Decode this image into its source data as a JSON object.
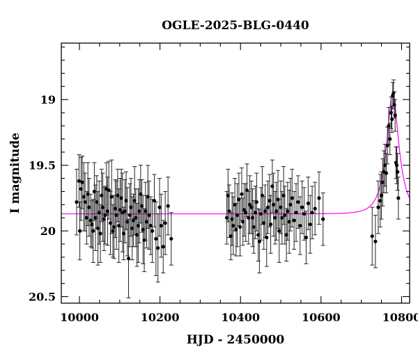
{
  "chart_data": {
    "type": "scatter",
    "title": "OGLE-2025-BLG-0440",
    "xlabel": "HJD - 2450000",
    "ylabel": "I magnitude",
    "xlim": [
      9955,
      10820
    ],
    "ylim": [
      20.55,
      18.57
    ],
    "y_inverted": true,
    "x_ticks": [
      10000,
      10200,
      10400,
      10600,
      10800
    ],
    "x_tick_labels": [
      "10000",
      "10200",
      "10400",
      "10600",
      "10800"
    ],
    "y_ticks": [
      19,
      19.5,
      20,
      20.5
    ],
    "y_tick_labels": [
      "19",
      "19.5",
      "20",
      "20.5"
    ],
    "grid": false,
    "legend": "none",
    "colors": {
      "points": "#000000",
      "model": "#ff00ff"
    },
    "model": {
      "name": "",
      "baseline_mag": 19.87,
      "peak_time": 10778,
      "peak_mag": 18.95,
      "timescale_days": 30,
      "u0": 0.4
    },
    "series": [
      {
        "name": "",
        "x": [
          9993,
          9999,
          10001,
          10004,
          10007,
          10011,
          10014,
          10018,
          10021,
          10024,
          10028,
          10031,
          10034,
          10037,
          10040,
          10043,
          10046,
          10049,
          10052,
          10055,
          10058,
          10061,
          10064,
          10067,
          10070,
          10073,
          10077,
          10080,
          10083,
          10086,
          10089,
          10092,
          10095,
          10098,
          10101,
          10104,
          10107,
          10110,
          10113,
          10116,
          10119,
          10122,
          10125,
          10128,
          10131,
          10134,
          10137,
          10140,
          10143,
          10146,
          10149,
          10152,
          10155,
          10158,
          10161,
          10164,
          10167,
          10170,
          10173,
          10177,
          10181,
          10186,
          10190,
          10195,
          10199,
          10203,
          10208,
          10213,
          10220,
          10228,
          10366,
          10369,
          10372,
          10376,
          10379,
          10382,
          10386,
          10389,
          10392,
          10396,
          10399,
          10403,
          10406,
          10409,
          10413,
          10416,
          10420,
          10423,
          10427,
          10430,
          10433,
          10437,
          10440,
          10444,
          10447,
          10451,
          10454,
          10458,
          10461,
          10465,
          10468,
          10472,
          10475,
          10479,
          10482,
          10486,
          10489,
          10493,
          10496,
          10500,
          10503,
          10507,
          10510,
          10514,
          10517,
          10521,
          10524,
          10528,
          10533,
          10538,
          10543,
          10548,
          10553,
          10558,
          10563,
          10568,
          10573,
          10578,
          10585,
          10595,
          10605,
          10727,
          10735,
          10742,
          10747,
          10750,
          10753,
          10756,
          10759,
          10762,
          10765,
          10768,
          10771,
          10774,
          10776,
          10778,
          10780,
          10782,
          10784,
          10786,
          10788,
          10790,
          10792
        ],
        "y": [
          19.78,
          19.62,
          20.0,
          19.68,
          19.63,
          19.74,
          19.78,
          19.9,
          19.72,
          19.82,
          19.92,
          19.95,
          20.0,
          19.7,
          19.9,
          19.78,
          19.98,
          19.86,
          20.02,
          19.73,
          19.82,
          19.91,
          19.88,
          19.68,
          19.85,
          19.69,
          19.94,
          19.74,
          20.0,
          19.97,
          19.83,
          19.88,
          19.73,
          19.96,
          19.84,
          19.75,
          19.86,
          20.02,
          19.85,
          19.77,
          19.93,
          20.21,
          19.88,
          19.82,
          19.98,
          19.92,
          19.77,
          19.9,
          20.03,
          19.96,
          19.85,
          19.72,
          19.81,
          19.99,
          20.07,
          19.85,
          19.93,
          19.74,
          19.88,
          19.96,
          20.0,
          19.77,
          20.06,
          20.13,
          19.82,
          19.96,
          20.12,
          19.94,
          19.81,
          20.06,
          19.9,
          19.73,
          19.85,
          20.04,
          19.91,
          19.96,
          19.8,
          19.99,
          19.88,
          19.76,
          19.97,
          19.72,
          19.93,
          19.84,
          19.86,
          19.69,
          19.9,
          19.8,
          19.82,
          19.9,
          19.97,
          19.86,
          19.78,
          20.03,
          20.08,
          19.87,
          19.73,
          19.94,
          19.85,
          20.05,
          19.82,
          19.77,
          19.95,
          19.66,
          19.8,
          19.9,
          19.85,
          19.76,
          20.0,
          19.82,
          19.9,
          19.73,
          19.88,
          20.03,
          19.85,
          19.93,
          19.8,
          19.75,
          19.92,
          19.86,
          19.78,
          19.96,
          19.82,
          19.87,
          20.05,
          19.79,
          19.95,
          19.86,
          19.83,
          19.75,
          19.91,
          20.04,
          20.08,
          19.82,
          19.77,
          19.73,
          19.63,
          19.55,
          19.5,
          19.56,
          19.35,
          19.2,
          19.3,
          19.1,
          19.15,
          18.97,
          18.95,
          19.04,
          19.12,
          19.48,
          19.5,
          19.55,
          19.75
        ],
        "err": [
          0.25,
          0.2,
          0.22,
          0.24,
          0.2,
          0.26,
          0.22,
          0.2,
          0.24,
          0.22,
          0.2,
          0.18,
          0.24,
          0.22,
          0.25,
          0.2,
          0.28,
          0.24,
          0.22,
          0.2,
          0.26,
          0.24,
          0.22,
          0.2,
          0.26,
          0.22,
          0.24,
          0.28,
          0.2,
          0.24,
          0.22,
          0.26,
          0.2,
          0.28,
          0.24,
          0.22,
          0.3,
          0.2,
          0.24,
          0.22,
          0.26,
          0.3,
          0.24,
          0.22,
          0.24,
          0.2,
          0.26,
          0.22,
          0.24,
          0.28,
          0.24,
          0.22,
          0.2,
          0.26,
          0.24,
          0.22,
          0.2,
          0.24,
          0.26,
          0.22,
          0.24,
          0.2,
          0.28,
          0.26,
          0.22,
          0.24,
          0.2,
          0.24,
          0.22,
          0.2,
          0.2,
          0.2,
          0.2,
          0.18,
          0.2,
          0.22,
          0.2,
          0.2,
          0.24,
          0.2,
          0.22,
          0.2,
          0.18,
          0.2,
          0.22,
          0.2,
          0.2,
          0.22,
          0.2,
          0.22,
          0.2,
          0.2,
          0.22,
          0.2,
          0.24,
          0.2,
          0.22,
          0.2,
          0.2,
          0.22,
          0.2,
          0.2,
          0.22,
          0.2,
          0.24,
          0.2,
          0.22,
          0.22,
          0.24,
          0.2,
          0.2,
          0.22,
          0.22,
          0.2,
          0.22,
          0.24,
          0.2,
          0.22,
          0.22,
          0.22,
          0.2,
          0.22,
          0.2,
          0.2,
          0.2,
          0.2,
          0.22,
          0.2,
          0.2,
          0.2,
          0.2,
          0.22,
          0.2,
          0.2,
          0.2,
          0.18,
          0.18,
          0.16,
          0.16,
          0.15,
          0.14,
          0.14,
          0.12,
          0.12,
          0.1,
          0.1,
          0.1,
          0.1,
          0.12,
          0.12,
          0.14,
          0.14,
          0.16
        ]
      }
    ]
  }
}
